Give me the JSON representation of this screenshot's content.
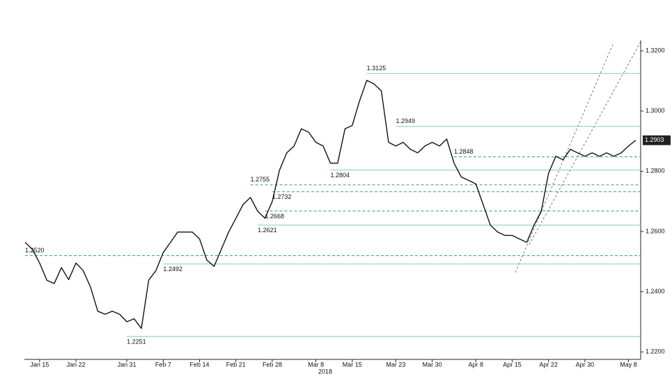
{
  "chart_data": {
    "type": "line",
    "xlabel": "2018",
    "color": "#111111",
    "level_colors": {
      "solid": "#7fcdbb",
      "dashed": "#2a9d8f"
    },
    "categories": [
      null,
      null,
      "Jan 15",
      null,
      null,
      null,
      null,
      "Jan 22",
      null,
      null,
      null,
      null,
      null,
      null,
      "Jan 31",
      null,
      null,
      null,
      null,
      "Feb 7",
      null,
      null,
      null,
      null,
      "Feb 14",
      null,
      null,
      null,
      null,
      "Feb 21",
      null,
      null,
      null,
      null,
      "Feb 28",
      null,
      null,
      null,
      null,
      null,
      "Mar 8",
      null,
      null,
      null,
      null,
      "Mar 15",
      null,
      null,
      null,
      null,
      null,
      "Mar 23",
      null,
      null,
      null,
      null,
      "Mar 30",
      null,
      null,
      null,
      null,
      null,
      "Apr 8",
      null,
      null,
      null,
      null,
      "Apr 15",
      null,
      null,
      null,
      null,
      "Apr 22",
      null,
      null,
      null,
      null,
      "Apr 30",
      null,
      null,
      null,
      null,
      null,
      "May 8",
      null
    ],
    "values": [
      1.2564,
      1.2541,
      1.2495,
      1.2438,
      1.2427,
      1.248,
      1.244,
      1.2495,
      1.247,
      1.2415,
      1.2335,
      1.2325,
      1.2335,
      1.2325,
      1.23,
      1.231,
      1.2278,
      1.2438,
      1.247,
      1.253,
      1.2564,
      1.2598,
      1.2598,
      1.2598,
      1.2575,
      1.2505,
      1.2484,
      1.2541,
      1.2598,
      1.2644,
      1.269,
      1.2713,
      1.2667,
      1.2644,
      1.27,
      1.2804,
      1.2861,
      1.2884,
      1.2941,
      1.293,
      1.2896,
      1.2884,
      1.2827,
      1.2827,
      1.2941,
      1.2952,
      1.3033,
      1.3102,
      1.309,
      1.3067,
      1.2896,
      1.2884,
      1.2896,
      1.2873,
      1.2861,
      1.2884,
      1.2896,
      1.2884,
      1.2907,
      1.2827,
      1.2781,
      1.277,
      1.2758,
      1.269,
      1.2621,
      1.2598,
      1.2587,
      1.2587,
      1.2575,
      1.2564,
      1.2621,
      1.2667,
      1.2793,
      1.285,
      1.2838,
      1.2873,
      1.2861,
      1.285,
      1.2861,
      1.285,
      1.2861,
      1.285,
      1.2861,
      1.2884,
      1.2903
    ],
    "ylim": [
      1.2175,
      1.3235
    ],
    "yticks": [
      {
        "value": 1.22,
        "label": "1.2200"
      },
      {
        "value": 1.24,
        "label": "1.2400"
      },
      {
        "value": 1.26,
        "label": "1.2600"
      },
      {
        "value": 1.28,
        "label": "1.2800"
      },
      {
        "value": 1.3,
        "label": "1.3000"
      },
      {
        "value": 1.32,
        "label": "1.3200"
      }
    ],
    "levels": [
      {
        "value": 1.3125,
        "label": "1.3125",
        "style": "solid",
        "start": 47
      },
      {
        "value": 1.2949,
        "label": "1.2949",
        "style": "solid",
        "start": 51
      },
      {
        "value": 1.2848,
        "label": "1.2848",
        "style": "dashed",
        "start": 59
      },
      {
        "value": 1.2804,
        "label": "1.2804",
        "style": "solid",
        "start": 42
      },
      {
        "value": 1.2755,
        "label": "1.2755",
        "style": "dashed",
        "start": 31
      },
      {
        "value": 1.2732,
        "label": "1.2732",
        "style": "dashed",
        "start": 34
      },
      {
        "value": 1.2668,
        "label": "1.2668",
        "style": "dashed",
        "start": 33
      },
      {
        "value": 1.2621,
        "label": "1.2621",
        "style": "solid",
        "start": 32
      },
      {
        "value": 1.252,
        "label": "1.2520",
        "style": "dashed",
        "start": 0
      },
      {
        "value": 1.2492,
        "label": "1.2492",
        "style": "solid",
        "start": 19
      },
      {
        "value": 1.2251,
        "label": "1.2251",
        "style": "solid",
        "start": 14
      }
    ]
  }
}
